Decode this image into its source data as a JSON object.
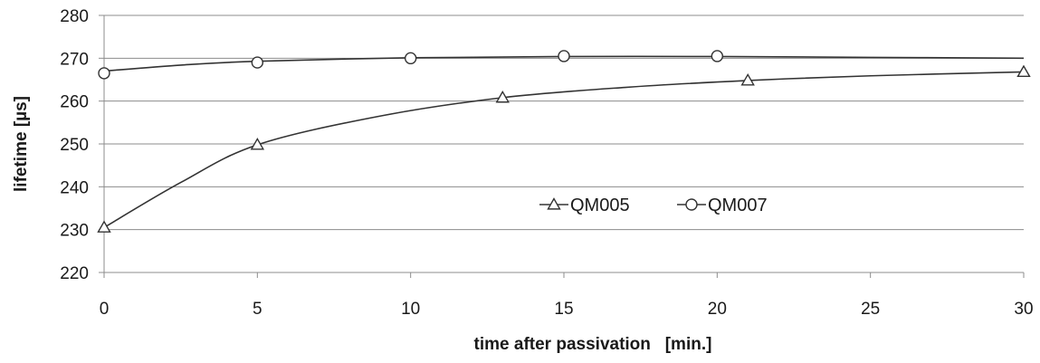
{
  "chart_data": {
    "type": "line",
    "title": "",
    "xlabel": "time after passivation   [min.]",
    "ylabel": "lifetime [µs]",
    "xlim": [
      0,
      30
    ],
    "ylim": [
      220,
      280
    ],
    "x_ticks": [
      0,
      5,
      10,
      15,
      20,
      25,
      30
    ],
    "y_ticks": [
      220,
      230,
      240,
      250,
      260,
      270,
      280
    ],
    "grid": "horizontal",
    "legend_position": "center",
    "series": [
      {
        "name": "QM005",
        "marker": "triangle",
        "color": "#333333",
        "x": [
          0,
          5,
          13,
          21,
          30
        ],
        "y": [
          230.5,
          249.8,
          260.8,
          264.8,
          266.8
        ]
      },
      {
        "name": "QM007",
        "marker": "circle",
        "color": "#333333",
        "x": [
          0,
          5,
          10,
          15,
          20
        ],
        "y": [
          266.5,
          269.0,
          270.0,
          270.5,
          270.5
        ]
      }
    ],
    "fit_curves": [
      {
        "series": "QM005",
        "x": [
          0,
          2.5,
          5,
          9,
          13,
          17,
          21,
          25,
          30
        ],
        "y": [
          230.5,
          241.0,
          249.8,
          256.5,
          260.8,
          263.2,
          264.8,
          265.9,
          266.8
        ]
      },
      {
        "series": "QM007",
        "x": [
          0,
          2.5,
          5,
          10,
          15,
          20,
          25,
          30
        ],
        "y": [
          267.0,
          268.4,
          269.3,
          270.1,
          270.4,
          270.4,
          270.2,
          270.0
        ]
      }
    ]
  }
}
